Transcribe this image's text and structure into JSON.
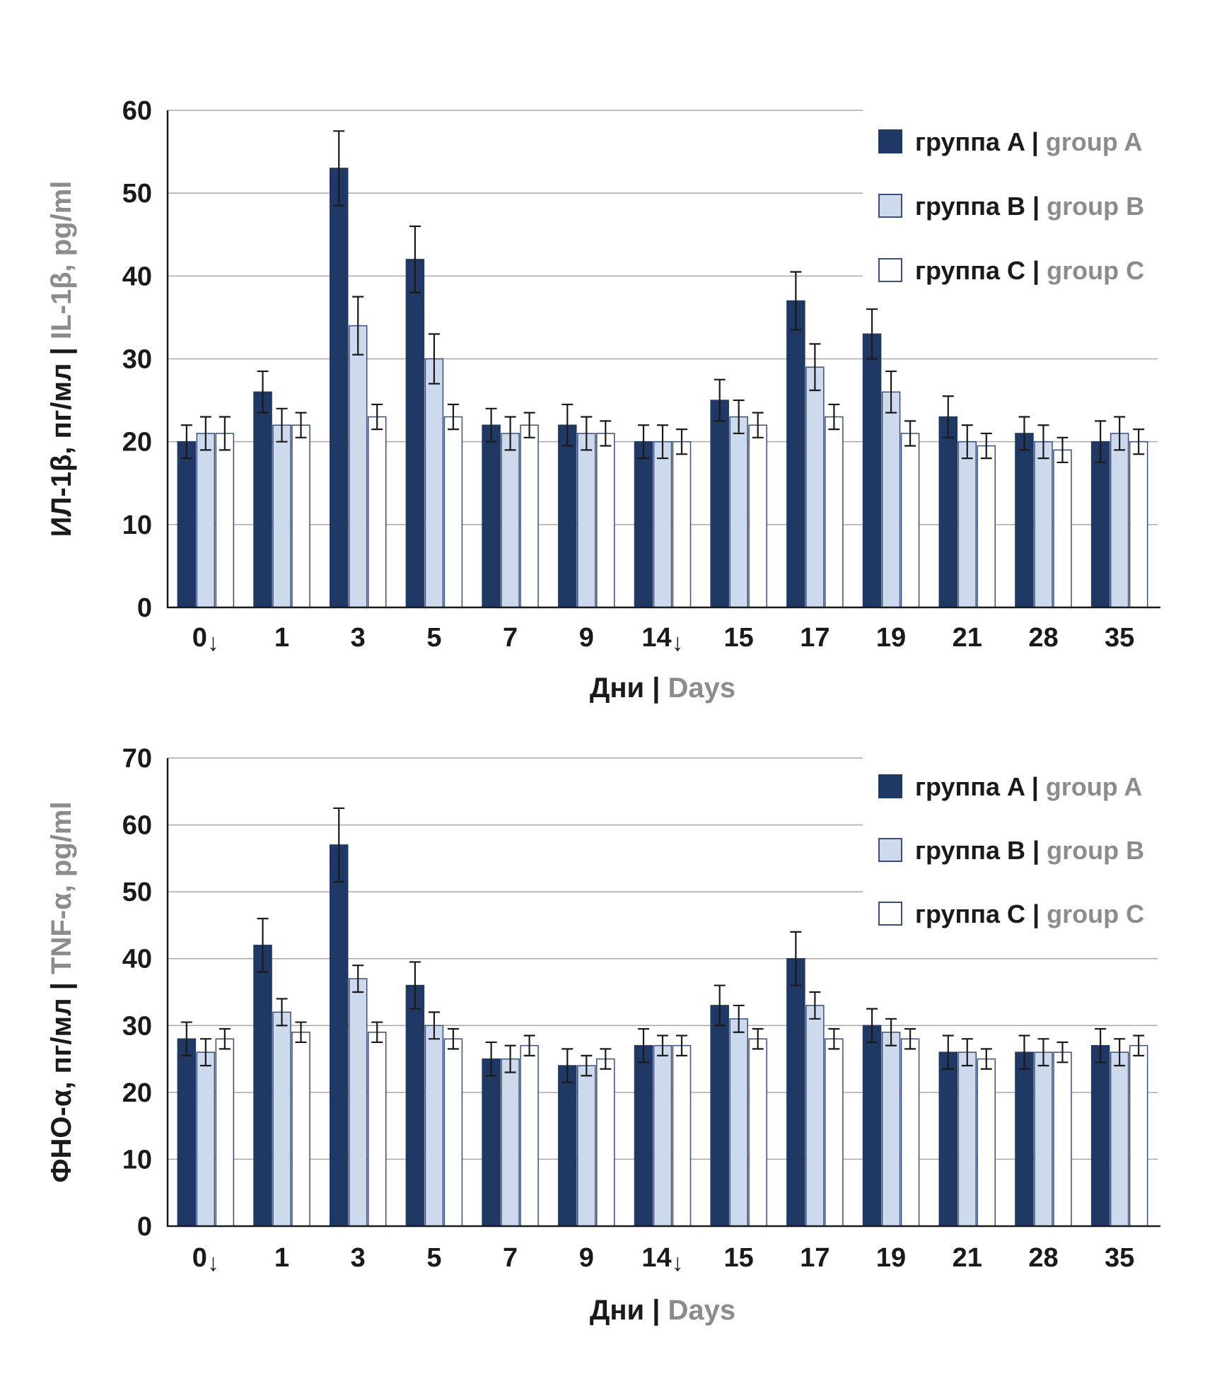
{
  "style": {
    "background": "#ffffff",
    "grid_color": "#A9A9A9",
    "axis_color": "#1A1A1A",
    "error_color": "#1A1A1A",
    "text_color": "#1A1A1A",
    "muted_color": "#8C8C8C",
    "group_a_color": "#1F3864",
    "group_b_color": "#CDD9EC",
    "group_c_color": "#FFFFFF",
    "bar_border_color": "#3A5078"
  },
  "chart_data": [
    {
      "type": "bar",
      "title": "",
      "label_separator": "|",
      "categories": [
        "0↓",
        "1",
        "3",
        "5",
        "7",
        "9",
        "14↓",
        "15",
        "17",
        "19",
        "21",
        "28",
        "35"
      ],
      "xlabel": {
        "ru": "Дни",
        "en": "Days"
      },
      "ylabel": {
        "ru": "ИЛ-1β, пг/мл",
        "en": "IL-1β, pg/ml"
      },
      "ylim": [
        0,
        60
      ],
      "yticks": [
        0,
        10,
        20,
        30,
        40,
        50,
        60
      ],
      "grid": true,
      "legend_position": "top-right",
      "series": [
        {
          "name_ru": "группа A",
          "name_en": "group A",
          "fill": "#1F3864",
          "stroke": "#1F3864",
          "values": [
            20,
            26,
            53,
            42,
            22,
            22,
            20,
            25,
            37,
            33,
            23,
            21,
            20
          ],
          "errors": [
            2,
            2.5,
            4.5,
            4,
            2,
            2.5,
            2,
            2.5,
            3.5,
            3,
            2.5,
            2,
            2.5
          ]
        },
        {
          "name_ru": "группа B",
          "name_en": "group B",
          "fill": "#CDD9EC",
          "stroke": "#3A5078",
          "values": [
            21,
            22,
            34,
            30,
            21,
            21,
            20,
            23,
            29,
            26,
            20,
            20,
            21
          ],
          "errors": [
            2,
            2,
            3.5,
            3,
            2,
            2,
            2,
            2,
            2.8,
            2.5,
            2,
            2,
            2
          ]
        },
        {
          "name_ru": "группа C",
          "name_en": "group C",
          "fill": "#FFFFFF",
          "stroke": "#3A5078",
          "values": [
            21,
            22,
            23,
            23,
            22,
            21,
            20,
            22,
            23,
            21,
            19.5,
            19,
            20
          ],
          "errors": [
            2,
            1.5,
            1.5,
            1.5,
            1.5,
            1.5,
            1.5,
            1.5,
            1.5,
            1.5,
            1.5,
            1.5,
            1.5
          ]
        }
      ]
    },
    {
      "type": "bar",
      "title": "",
      "label_separator": "|",
      "categories": [
        "0↓",
        "1",
        "3",
        "5",
        "7",
        "9",
        "14↓",
        "15",
        "17",
        "19",
        "21",
        "28",
        "35"
      ],
      "xlabel": {
        "ru": "Дни",
        "en": "Days"
      },
      "ylabel": {
        "ru": "ФНО-α, пг/мл",
        "en": "TNF-α, pg/ml"
      },
      "ylim": [
        0,
        70
      ],
      "yticks": [
        0,
        10,
        20,
        30,
        40,
        50,
        60,
        70
      ],
      "grid": true,
      "legend_position": "top-right",
      "series": [
        {
          "name_ru": "группа A",
          "name_en": "group A",
          "fill": "#1F3864",
          "stroke": "#1F3864",
          "values": [
            28,
            42,
            57,
            36,
            25,
            24,
            27,
            33,
            40,
            30,
            26,
            26,
            27
          ],
          "errors": [
            2.5,
            4,
            5.5,
            3.5,
            2.5,
            2.5,
            2.5,
            3,
            4,
            2.5,
            2.5,
            2.5,
            2.5
          ]
        },
        {
          "name_ru": "группа B",
          "name_en": "group B",
          "fill": "#CDD9EC",
          "stroke": "#3A5078",
          "values": [
            26,
            32,
            37,
            30,
            25,
            24,
            27,
            31,
            33,
            29,
            26,
            26,
            26
          ],
          "errors": [
            2,
            2,
            2,
            2,
            2,
            1.5,
            1.5,
            2,
            2,
            2,
            2,
            2,
            2
          ]
        },
        {
          "name_ru": "группа C",
          "name_en": "group C",
          "fill": "#FFFFFF",
          "stroke": "#3A5078",
          "values": [
            28,
            29,
            29,
            28,
            27,
            25,
            27,
            28,
            28,
            28,
            25,
            26,
            27
          ],
          "errors": [
            1.5,
            1.5,
            1.5,
            1.5,
            1.5,
            1.5,
            1.5,
            1.5,
            1.5,
            1.5,
            1.5,
            1.5,
            1.5
          ]
        }
      ]
    }
  ]
}
